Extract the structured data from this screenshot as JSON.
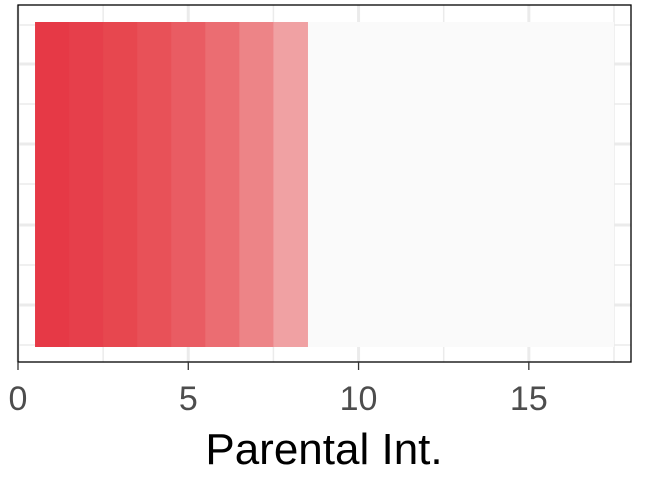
{
  "chart_data": {
    "type": "bar",
    "orientation": "horizontal",
    "title": "",
    "xlabel": "Parental Int.",
    "ylabel": "",
    "xlim": [
      0,
      18
    ],
    "xticks": [
      0,
      5,
      10,
      15
    ],
    "xtick_labels": [
      "0",
      "5",
      "10",
      "15"
    ],
    "grid": true,
    "legend": "none",
    "background_track": {
      "from": 0.5,
      "to": 17.5,
      "color": "#fafafa"
    },
    "segments": [
      {
        "from": 0.5,
        "to": 1.5,
        "color": "#e63946"
      },
      {
        "from": 1.5,
        "to": 2.5,
        "color": "#e63f4b"
      },
      {
        "from": 2.5,
        "to": 3.5,
        "color": "#e7474f"
      },
      {
        "from": 3.5,
        "to": 4.5,
        "color": "#e85158"
      },
      {
        "from": 4.5,
        "to": 5.5,
        "color": "#e95c63"
      },
      {
        "from": 5.5,
        "to": 6.5,
        "color": "#eb6d72"
      },
      {
        "from": 6.5,
        "to": 7.5,
        "color": "#ed8487"
      },
      {
        "from": 7.5,
        "to": 8.5,
        "color": "#f0a1a3"
      }
    ]
  }
}
